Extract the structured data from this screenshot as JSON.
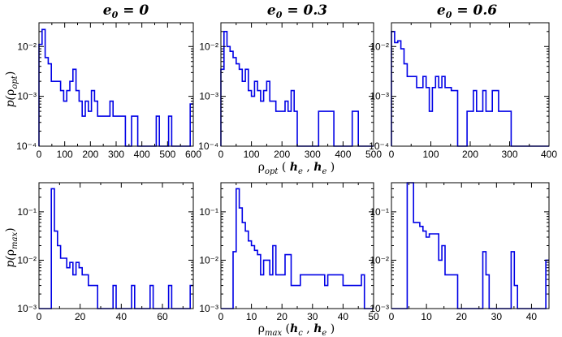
{
  "colors": {
    "histogram": "#0000e6",
    "axes": "#000000"
  },
  "col_titles": [
    {
      "sym": "e",
      "sub": "0",
      "eq": " = 0"
    },
    {
      "sym": "e",
      "sub": "0",
      "eq": " = 0.3"
    },
    {
      "sym": "e",
      "sub": "0",
      "eq": " = 0.6"
    }
  ],
  "ylabels": {
    "top": {
      "pre": "p(",
      "sym": "ρ",
      "sub": "opt",
      "post": ")"
    },
    "bottom": {
      "pre": "p(",
      "sym": "ρ",
      "sub": "max",
      "post": ")"
    }
  },
  "xlabels": {
    "top": {
      "sym": "ρ",
      "sub": "opt",
      "mid": " ( ",
      "a": "h",
      "asub": "e",
      "comma": " , ",
      "b": "h",
      "bsub": "e",
      "post": " )"
    },
    "bottom": {
      "sym": "ρ",
      "sub": "max",
      "mid": " (",
      "a": "h",
      "asub": "c",
      "comma": " , ",
      "b": "h",
      "bsub": "e",
      "post": " )"
    }
  },
  "chart_data": [
    {
      "type": "histogram",
      "panel": "top-left",
      "column_title": "e0 = 0",
      "xlim": [
        0,
        600
      ],
      "ylim": [
        0.0001,
        0.03
      ],
      "yscale": "log",
      "xticks": [
        0,
        100,
        200,
        300,
        400,
        500,
        600
      ],
      "xtick_labels": [
        "0",
        "100",
        "200",
        "300",
        "400",
        "500",
        "600"
      ],
      "yticks": [
        0.0001,
        0.001,
        0.01
      ],
      "ytick_labels": [
        "10⁻⁴",
        "10⁻³",
        "10⁻²"
      ],
      "bin_edges": [
        0,
        12,
        24,
        36,
        48,
        60,
        72,
        84,
        96,
        108,
        120,
        132,
        144,
        156,
        168,
        180,
        192,
        204,
        216,
        228,
        240,
        252,
        264,
        276,
        288,
        300,
        312,
        324,
        336,
        348,
        360,
        372,
        384,
        396,
        408,
        420,
        432,
        444,
        456,
        468,
        480,
        492,
        504,
        516,
        528,
        540,
        552,
        564,
        576,
        588,
        600
      ],
      "values": [
        0.011,
        0.022,
        0.006,
        0.0045,
        0.002,
        0.002,
        0.002,
        0.0013,
        0.0008,
        0.0013,
        0.002,
        0.0035,
        0.0013,
        0.0008,
        0.0004,
        0.0008,
        0.0005,
        0.0013,
        0.0008,
        0.0004,
        0.0004,
        0.0004,
        0.0004,
        0.0008,
        0.0004,
        0.0004,
        0.0004,
        0.0004,
        0.0001,
        0.0001,
        0.0004,
        0.0004,
        0.0001,
        0.0001,
        0.0001,
        0.0001,
        0.0001,
        0.0001,
        0.0004,
        0.0001,
        0.0001,
        0.0001,
        0.0004,
        0.0001,
        0.0001,
        0.0001,
        0.0001,
        0.0001,
        0.0001,
        0.0007
      ]
    },
    {
      "type": "histogram",
      "panel": "top-middle",
      "column_title": "e0 = 0.3",
      "xlim": [
        0,
        500
      ],
      "ylim": [
        0.0001,
        0.03
      ],
      "yscale": "log",
      "xticks": [
        0,
        100,
        200,
        300,
        400,
        500
      ],
      "xtick_labels": [
        "0",
        "100",
        "200",
        "300",
        "400",
        "500"
      ],
      "yticks": [
        0.0001,
        0.001,
        0.01
      ],
      "ytick_labels": [
        "10⁻⁴",
        "10⁻³",
        "10⁻²"
      ],
      "bin_edges": [
        0,
        10,
        20,
        30,
        40,
        50,
        60,
        70,
        80,
        90,
        100,
        110,
        120,
        130,
        140,
        150,
        160,
        170,
        180,
        190,
        200,
        210,
        220,
        230,
        240,
        250,
        260,
        270,
        280,
        290,
        300,
        310,
        320,
        330,
        340,
        350,
        360,
        370,
        380,
        390,
        400,
        410,
        420,
        430,
        440,
        450,
        460,
        470,
        480,
        490,
        500
      ],
      "values": [
        0.0035,
        0.02,
        0.01,
        0.008,
        0.006,
        0.0045,
        0.0035,
        0.002,
        0.0035,
        0.0013,
        0.001,
        0.002,
        0.0013,
        0.0008,
        0.0013,
        0.002,
        0.0008,
        0.0008,
        0.0005,
        0.0005,
        0.0005,
        0.0008,
        0.0005,
        0.0013,
        0.0005,
        0.0001,
        0.0001,
        0.0001,
        0.0001,
        0.0001,
        0.0001,
        0.0001,
        0.0005,
        0.0005,
        0.0005,
        0.0005,
        0.0005,
        0.0001,
        0.0001,
        0.0001,
        0.0001,
        0.0001,
        0.0001,
        0.0005,
        0.0005,
        0.0001,
        0.0001,
        0.0001,
        0.0001,
        0.0001
      ]
    },
    {
      "type": "histogram",
      "panel": "top-right",
      "column_title": "e0 = 0.6",
      "xlim": [
        0,
        400
      ],
      "ylim": [
        0.0001,
        0.03
      ],
      "yscale": "log",
      "xticks": [
        0,
        100,
        200,
        300,
        400
      ],
      "xtick_labels": [
        "0",
        "100",
        "200",
        "300",
        "400"
      ],
      "yticks": [
        0.0001,
        0.001,
        0.01
      ],
      "ytick_labels": [
        "10⁻⁴",
        "10⁻³",
        "10⁻²"
      ],
      "bin_edges": [
        0,
        8,
        16,
        24,
        32,
        40,
        48,
        56,
        64,
        72,
        80,
        88,
        96,
        104,
        112,
        120,
        128,
        136,
        144,
        152,
        160,
        168,
        176,
        184,
        192,
        200,
        208,
        216,
        224,
        232,
        240,
        248,
        256,
        264,
        272,
        280,
        288,
        296,
        304,
        312,
        320,
        328,
        336,
        344,
        352,
        360,
        368,
        376,
        384,
        392,
        400
      ],
      "values": [
        0.02,
        0.012,
        0.013,
        0.009,
        0.0045,
        0.0025,
        0.0025,
        0.0025,
        0.0015,
        0.0015,
        0.0025,
        0.0015,
        0.0005,
        0.0015,
        0.0025,
        0.0015,
        0.0025,
        0.0015,
        0.0015,
        0.0013,
        0.0013,
        0.0001,
        0.0001,
        0.0001,
        0.0005,
        0.0005,
        0.0013,
        0.0005,
        0.0005,
        0.0013,
        0.0005,
        0.0005,
        0.0013,
        0.0013,
        0.0005,
        0.0005,
        0.0005,
        0.0005,
        0.0001,
        0.0001,
        0.0001,
        0.0001,
        0.0001,
        0.0001,
        0.0001,
        0.0001,
        0.0001,
        0.0001,
        0.0001,
        0.0001
      ]
    },
    {
      "type": "histogram",
      "panel": "bottom-left",
      "column_title": "e0 = 0",
      "xlim": [
        0,
        75
      ],
      "ylim": [
        0.001,
        0.4
      ],
      "yscale": "log",
      "xticks": [
        0,
        20,
        40,
        60
      ],
      "xtick_labels": [
        "0",
        "20",
        "40",
        "60"
      ],
      "yticks": [
        0.001,
        0.01,
        0.1
      ],
      "ytick_labels": [
        "10⁻³",
        "10⁻²",
        "10⁻¹"
      ],
      "bin_edges": [
        0,
        1.5,
        3,
        4.5,
        6,
        7.5,
        9,
        10.5,
        12,
        13.5,
        15,
        16.5,
        18,
        19.5,
        21,
        22.5,
        24,
        25.5,
        27,
        28.5,
        30,
        31.5,
        33,
        34.5,
        36,
        37.5,
        39,
        40.5,
        42,
        43.5,
        45,
        46.5,
        48,
        49.5,
        51,
        52.5,
        54,
        55.5,
        57,
        58.5,
        60,
        61.5,
        63,
        64.5,
        66,
        67.5,
        69,
        70.5,
        72,
        73.5,
        75
      ],
      "values": [
        0.001,
        0.001,
        0.001,
        0.001,
        0.3,
        0.04,
        0.02,
        0.011,
        0.011,
        0.007,
        0.009,
        0.005,
        0.009,
        0.007,
        0.005,
        0.005,
        0.003,
        0.003,
        0.003,
        0.001,
        0.001,
        0.001,
        0.001,
        0.001,
        0.003,
        0.001,
        0.001,
        0.001,
        0.001,
        0.001,
        0.003,
        0.001,
        0.001,
        0.001,
        0.001,
        0.001,
        0.003,
        0.001,
        0.001,
        0.001,
        0.001,
        0.001,
        0.003,
        0.001,
        0.001,
        0.001,
        0.001,
        0.001,
        0.001,
        0.003
      ]
    },
    {
      "type": "histogram",
      "panel": "bottom-middle",
      "column_title": "e0 = 0.3",
      "xlim": [
        0,
        50
      ],
      "ylim": [
        0.001,
        0.4
      ],
      "yscale": "log",
      "xticks": [
        0,
        10,
        20,
        30,
        40,
        50
      ],
      "xtick_labels": [
        "0",
        "10",
        "20",
        "30",
        "40",
        "50"
      ],
      "yticks": [
        0.001,
        0.01,
        0.1
      ],
      "ytick_labels": [
        "10⁻³",
        "10⁻²",
        "10⁻¹"
      ],
      "bin_edges": [
        0,
        1,
        2,
        3,
        4,
        5,
        6,
        7,
        8,
        9,
        10,
        11,
        12,
        13,
        14,
        15,
        16,
        17,
        18,
        19,
        20,
        21,
        22,
        23,
        24,
        25,
        26,
        27,
        28,
        29,
        30,
        31,
        32,
        33,
        34,
        35,
        36,
        37,
        38,
        39,
        40,
        41,
        42,
        43,
        44,
        45,
        46,
        47,
        48,
        49,
        50
      ],
      "values": [
        0.001,
        0.001,
        0.001,
        0.001,
        0.015,
        0.3,
        0.12,
        0.06,
        0.04,
        0.025,
        0.02,
        0.016,
        0.013,
        0.005,
        0.01,
        0.01,
        0.005,
        0.02,
        0.005,
        0.005,
        0.005,
        0.013,
        0.013,
        0.003,
        0.003,
        0.003,
        0.005,
        0.005,
        0.005,
        0.005,
        0.005,
        0.005,
        0.005,
        0.005,
        0.003,
        0.005,
        0.005,
        0.005,
        0.005,
        0.005,
        0.003,
        0.003,
        0.003,
        0.003,
        0.003,
        0.003,
        0.005,
        0.001,
        0.001,
        0.001
      ]
    },
    {
      "type": "histogram",
      "panel": "bottom-right",
      "column_title": "e0 = 0.6",
      "xlim": [
        0,
        45
      ],
      "ylim": [
        0.001,
        0.4
      ],
      "yscale": "log",
      "xticks": [
        0,
        10,
        20,
        30,
        40
      ],
      "xtick_labels": [
        "0",
        "10",
        "20",
        "30",
        "40"
      ],
      "yticks": [
        0.001,
        0.01,
        0.1
      ],
      "ytick_labels": [
        "10⁻³",
        "10⁻²",
        "10⁻¹"
      ],
      "bin_edges": [
        0,
        0.9,
        1.8,
        2.7,
        3.6,
        4.5,
        5.4,
        6.3,
        7.2,
        8.1,
        9,
        9.9,
        10.8,
        11.7,
        12.6,
        13.5,
        14.4,
        15.3,
        16.2,
        17.1,
        18,
        18.9,
        19.8,
        20.7,
        21.6,
        22.5,
        23.4,
        24.3,
        25.2,
        26.1,
        27,
        27.9,
        28.8,
        29.7,
        30.6,
        31.5,
        32.4,
        33.3,
        34.2,
        35.1,
        36,
        36.9,
        37.8,
        38.7,
        39.6,
        40.5,
        41.4,
        42.3,
        43.2,
        44.1,
        45
      ],
      "values": [
        0.001,
        0.001,
        0.001,
        0.001,
        0.001,
        0.4,
        0.4,
        0.06,
        0.06,
        0.05,
        0.04,
        0.03,
        0.035,
        0.035,
        0.035,
        0.01,
        0.02,
        0.005,
        0.005,
        0.005,
        0.005,
        0.001,
        0.001,
        0.001,
        0.001,
        0.001,
        0.001,
        0.001,
        0.001,
        0.015,
        0.005,
        0.001,
        0.001,
        0.001,
        0.001,
        0.001,
        0.001,
        0.001,
        0.015,
        0.003,
        0.001,
        0.001,
        0.001,
        0.001,
        0.001,
        0.001,
        0.001,
        0.001,
        0.001,
        0.01
      ]
    }
  ]
}
